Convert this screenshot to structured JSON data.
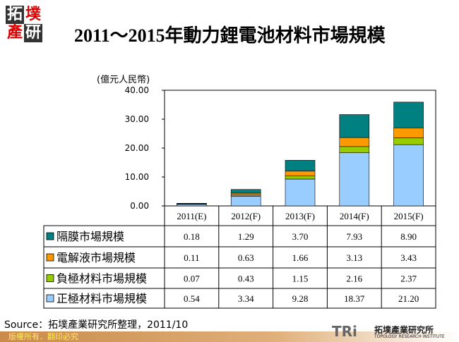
{
  "logo": {
    "chars": [
      "拓",
      "墣",
      "產",
      "研"
    ]
  },
  "chart_data": {
    "type": "bar",
    "stacked": true,
    "title": "2011～2015年動力鋰電池材料市場規模",
    "ylabel": "(億元人民幣)",
    "ylim": [
      0,
      40
    ],
    "yticks": [
      "0.00",
      "10.00",
      "20.00",
      "30.00",
      "40.00"
    ],
    "categories": [
      "2011(E)",
      "2012(F)",
      "2013(F)",
      "2014(F)",
      "2015(F)"
    ],
    "series": [
      {
        "name": "正極材料市場規模",
        "color": "#99ccff",
        "values": [
          0.54,
          3.34,
          9.28,
          18.37,
          21.2
        ],
        "labels": [
          "0.54",
          "3.34",
          "9.28",
          "18.37",
          "21.20"
        ]
      },
      {
        "name": "負極材料市場規模",
        "color": "#99cc00",
        "values": [
          0.07,
          0.43,
          1.15,
          2.16,
          2.37
        ],
        "labels": [
          "0.07",
          "0.43",
          "1.15",
          "2.16",
          "2.37"
        ]
      },
      {
        "name": "電解液市場規模",
        "color": "#ff9900",
        "values": [
          0.11,
          0.63,
          1.66,
          3.13,
          3.43
        ],
        "labels": [
          "0.11",
          "0.63",
          "1.66",
          "3.13",
          "3.43"
        ]
      },
      {
        "name": "隔膜市場規模",
        "color": "#008080",
        "values": [
          0.18,
          1.29,
          3.7,
          7.93,
          8.9
        ],
        "labels": [
          "0.18",
          "1.29",
          "3.70",
          "7.93",
          "8.90"
        ]
      }
    ],
    "grid": false,
    "legend": "data-table"
  },
  "source": "Source：拓墣產業研究所整理，2011/10",
  "footer": "版權所有．翻印必究",
  "brand": {
    "mark": "TRi",
    "cn": "拓墣產業研究所",
    "en": "TOPOLOGY RESEARCH INSTITUTE"
  }
}
